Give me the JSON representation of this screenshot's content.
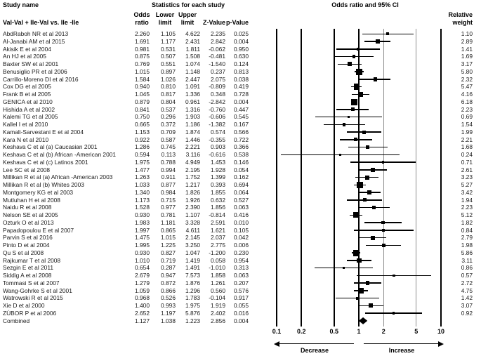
{
  "header": {
    "study_col_title": "Study name",
    "stats_title": "Statistics for each study",
    "plot_title": "Odds ratio and 95% CI",
    "subgroup_label": "Val-Val  + Ile-Val vs. Ile -Ile",
    "col_odds_1": "Odds",
    "col_odds_2": "ratio",
    "col_lower_1": "Lower",
    "col_lower_2": "limit",
    "col_upper_1": "Upper",
    "col_upper_2": "limit",
    "col_z": "Z-Value",
    "col_p": "p-Value",
    "col_weight_1": "Relative",
    "col_weight_2": "weight"
  },
  "axis": {
    "scale": "log10",
    "range": [
      0.1,
      10
    ],
    "ticks": [
      {
        "label": "0.1",
        "value": 0.1,
        "style": "major"
      },
      {
        "label": "0.2",
        "value": 0.2,
        "style": "major"
      },
      {
        "label": "0.5",
        "value": 0.5,
        "style": "major"
      },
      {
        "label": "1",
        "value": 1,
        "style": "major"
      },
      {
        "label": "2",
        "value": 2,
        "style": "minor"
      },
      {
        "label": "5",
        "value": 5,
        "style": "minor"
      },
      {
        "label": "10",
        "value": 10,
        "style": "major"
      }
    ],
    "decrease_label": "Decrease",
    "increase_label": "Increase"
  },
  "chart_data": {
    "type": "forest",
    "title": "Odds ratio and 95% CI",
    "x_scale": "log10",
    "x_range": [
      0.1,
      10
    ],
    "columns": [
      "Odds ratio",
      "Lower limit",
      "Upper limit",
      "Z-Value",
      "p-Value",
      "Relative weight"
    ],
    "studies": [
      {
        "name": "AbdRaboh NR et al 2013",
        "or": "2.260",
        "lower": "1.105",
        "upper": "4.622",
        "z": "2.235",
        "p": "0.025",
        "w": "1.10"
      },
      {
        "name": "Al-Janabi AM et al 2015",
        "or": "1.691",
        "lower": "1.177",
        "upper": "2.431",
        "z": "2.842",
        "p": "0.004",
        "w": "2.89"
      },
      {
        "name": "Akisik E et al 2004",
        "or": "0.981",
        "lower": "0.531",
        "upper": "1.811",
        "z": "-0.062",
        "p": "0.950",
        "w": "1.41"
      },
      {
        "name": "An HJ et al 2005",
        "or": "0.875",
        "lower": "0.507",
        "upper": "1.508",
        "z": "-0.481",
        "p": "0.630",
        "w": "1.69"
      },
      {
        "name": "Baxter SW et al 2001",
        "or": "0.769",
        "lower": "0.551",
        "upper": "1.074",
        "z": "-1.540",
        "p": "0.124",
        "w": "3.17"
      },
      {
        "name": "Benusiglio PR et al 2006",
        "or": "1.015",
        "lower": "0.897",
        "upper": "1.148",
        "z": "0.237",
        "p": "0.813",
        "w": "5.80"
      },
      {
        "name": "Carrillo-Moreno DI et al 2016",
        "or": "1.584",
        "lower": "1.026",
        "upper": "2.447",
        "z": "2.075",
        "p": "0.038",
        "w": "2.32"
      },
      {
        "name": "Cox DG et al 2005",
        "or": "0.940",
        "lower": "0.810",
        "upper": "1.091",
        "z": "-0.809",
        "p": "0.419",
        "w": "5.47"
      },
      {
        "name": "Frank B et al 2005",
        "or": "1.045",
        "lower": "0.817",
        "upper": "1.336",
        "z": "0.348",
        "p": "0.728",
        "w": "4.16"
      },
      {
        "name": "GENICA et al 2010",
        "or": "0.879",
        "lower": "0.804",
        "upper": "0.961",
        "z": "-2.842",
        "p": "0.004",
        "w": "6.18"
      },
      {
        "name": "Hishida A et al 2002",
        "or": "0.841",
        "lower": "0.537",
        "upper": "1.316",
        "z": "-0.760",
        "p": "0.447",
        "w": "2.23"
      },
      {
        "name": "Kalemi TG et al 2005",
        "or": "0.750",
        "lower": "0.296",
        "upper": "1.903",
        "z": "-0.606",
        "p": "0.545",
        "w": "0.69"
      },
      {
        "name": "Kallel I et al 2010",
        "or": "0.665",
        "lower": "0.372",
        "upper": "1.186",
        "z": "-1.382",
        "p": "0.167",
        "w": "1.54"
      },
      {
        "name": "Kamali-Sarvestani E et al 2004",
        "or": "1.153",
        "lower": "0.709",
        "upper": "1.874",
        "z": "0.574",
        "p": "0.566",
        "w": "1.99"
      },
      {
        "name": "Kara N et al 2010",
        "or": "0.922",
        "lower": "0.587",
        "upper": "1.446",
        "z": "-0.355",
        "p": "0.722",
        "w": "2.21"
      },
      {
        "name": "Keshava C et al (a) Caucasian 2001",
        "or": "1.286",
        "lower": "0.745",
        "upper": "2.221",
        "z": "0.903",
        "p": "0.366",
        "w": "1.68"
      },
      {
        "name": "Keshava C et al (b) African -American 2001",
        "or": "0.594",
        "lower": "0.113",
        "upper": "3.116",
        "z": "-0.616",
        "p": "0.538",
        "w": "0.24"
      },
      {
        "name": "Keshava C et al (c) Latinos 2001",
        "or": "1.975",
        "lower": "0.788",
        "upper": "4.949",
        "z": "1.453",
        "p": "0.146",
        "w": "0.71"
      },
      {
        "name": "Lee SC et al 2008",
        "or": "1.477",
        "lower": "0.994",
        "upper": "2.195",
        "z": "1.928",
        "p": "0.054",
        "w": "2.61"
      },
      {
        "name": "Millikan R et al (a) African -American 2003",
        "or": "1.263",
        "lower": "0.911",
        "upper": "1.752",
        "z": "1.399",
        "p": "0.162",
        "w": "3.23"
      },
      {
        "name": "Millikan R et al (b) Whites 2003",
        "or": "1.033",
        "lower": "0.877",
        "upper": "1.217",
        "z": "0.393",
        "p": "0.694",
        "w": "5.27"
      },
      {
        "name": "Montgomery KG et al 2003",
        "or": "1.340",
        "lower": "0.984",
        "upper": "1.826",
        "z": "1.855",
        "p": "0.064",
        "w": "3.42"
      },
      {
        "name": "Mutluhan H et al 2008",
        "or": "1.173",
        "lower": "0.715",
        "upper": "1.926",
        "z": "0.632",
        "p": "0.527",
        "w": "1.94"
      },
      {
        "name": "Naidu R et al 2008",
        "or": "1.528",
        "lower": "0.977",
        "upper": "2.390",
        "z": "1.856",
        "p": "0.063",
        "w": "2.23"
      },
      {
        "name": "Nelson SE et al 2005",
        "or": "0.930",
        "lower": "0.781",
        "upper": "1.107",
        "z": "-0.814",
        "p": "0.416",
        "w": "5.12"
      },
      {
        "name": "Ozturk O et al 2013",
        "or": "1.983",
        "lower": "1.181",
        "upper": "3.328",
        "z": "2.591",
        "p": "0.010",
        "w": "1.82"
      },
      {
        "name": "Papadopoulou E et al 2007",
        "or": "1.997",
        "lower": "0.865",
        "upper": "4.611",
        "z": "1.621",
        "p": "0.105",
        "w": "0.84"
      },
      {
        "name": "Parvin S et al 2016",
        "or": "1.475",
        "lower": "1.015",
        "upper": "2.145",
        "z": "2.037",
        "p": "0.042",
        "w": "2.79"
      },
      {
        "name": "Pinto D et al 2004",
        "or": "1.995",
        "lower": "1.225",
        "upper": "3.250",
        "z": "2.775",
        "p": "0.006",
        "w": "1.98"
      },
      {
        "name": "Qu S et al 2008",
        "or": "0.930",
        "lower": "0.827",
        "upper": "1.047",
        "z": "-1.200",
        "p": "0.230",
        "w": "5.86"
      },
      {
        "name": "Rajkumar T et al 2008",
        "or": "1.010",
        "lower": "0.719",
        "upper": "1.419",
        "z": "0.058",
        "p": "0.954",
        "w": "3.11"
      },
      {
        "name": "Sezgin E et al 2011",
        "or": "0.654",
        "lower": "0.287",
        "upper": "1.491",
        "z": "-1.010",
        "p": "0.313",
        "w": "0.86"
      },
      {
        "name": "Siddig A et al 2008",
        "or": "2.679",
        "lower": "0.947",
        "upper": "7.573",
        "z": "1.858",
        "p": "0.063",
        "w": "0.57"
      },
      {
        "name": "Tommasi S et al 2007",
        "or": "1.279",
        "lower": "0.872",
        "upper": "1.876",
        "z": "1.261",
        "p": "0.207",
        "w": "2.72"
      },
      {
        "name": "Wang-Gohrke S et al 2001",
        "or": "1.059",
        "lower": "0.866",
        "upper": "1.296",
        "z": "0.560",
        "p": "0.576",
        "w": "4.75"
      },
      {
        "name": "Watrowski R et al 2015",
        "or": "0.968",
        "lower": "0.526",
        "upper": "1.783",
        "z": "-0.104",
        "p": "0.917",
        "w": "1.42"
      },
      {
        "name": "Xie D et al 2000",
        "or": "1.400",
        "lower": "0.993",
        "upper": "1.975",
        "z": "1.919",
        "p": "0.055",
        "w": "3.07"
      },
      {
        "name": "ZÚBOR P et al 2006",
        "or": "2.652",
        "lower": "1.197",
        "upper": "5.876",
        "z": "2.402",
        "p": "0.016",
        "w": "0.92"
      },
      {
        "name": "Combined",
        "or": "1.127",
        "lower": "1.038",
        "upper": "1.223",
        "z": "2.856",
        "p": "0.004",
        "w": "",
        "marker": "diamond"
      }
    ]
  }
}
